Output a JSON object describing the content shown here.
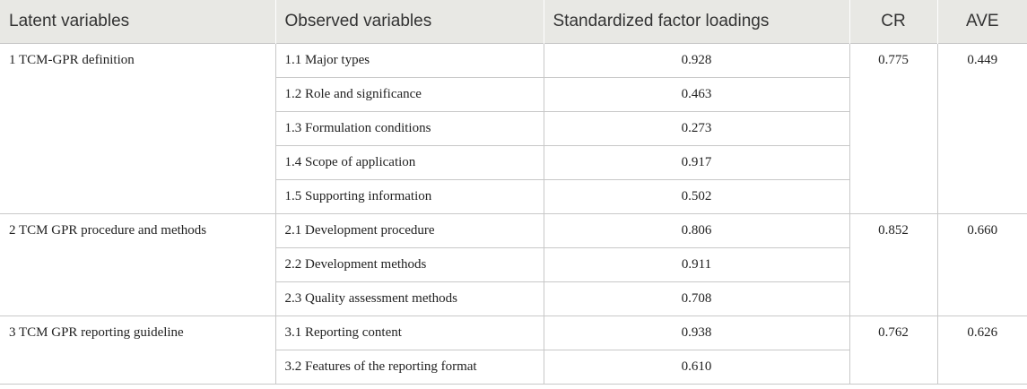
{
  "headers": {
    "latent": "Latent variables",
    "observed": "Observed variables",
    "loadings": "Standardized factor loadings",
    "cr": "CR",
    "ave": "AVE"
  },
  "groups": [
    {
      "latent": "1 TCM-GPR definition",
      "cr": "0.775",
      "ave": "0.449",
      "rows": [
        {
          "observed": "1.1 Major types",
          "loading": "0.928"
        },
        {
          "observed": "1.2 Role and significance",
          "loading": "0.463"
        },
        {
          "observed": "1.3 Formulation conditions",
          "loading": "0.273"
        },
        {
          "observed": "1.4 Scope of application",
          "loading": "0.917"
        },
        {
          "observed": "1.5 Supporting information",
          "loading": "0.502"
        }
      ]
    },
    {
      "latent": "2 TCM GPR procedure and methods",
      "cr": "0.852",
      "ave": "0.660",
      "rows": [
        {
          "observed": "2.1 Development procedure",
          "loading": "0.806"
        },
        {
          "observed": "2.2 Development methods",
          "loading": "0.911"
        },
        {
          "observed": "2.3 Quality assessment methods",
          "loading": "0.708"
        }
      ]
    },
    {
      "latent": "3 TCM GPR reporting guideline",
      "cr": "0.762",
      "ave": "0.626",
      "rows": [
        {
          "observed": "3.1 Reporting content",
          "loading": "0.938"
        },
        {
          "observed": "3.2 Features of the reporting format",
          "loading": "0.610"
        }
      ]
    }
  ]
}
